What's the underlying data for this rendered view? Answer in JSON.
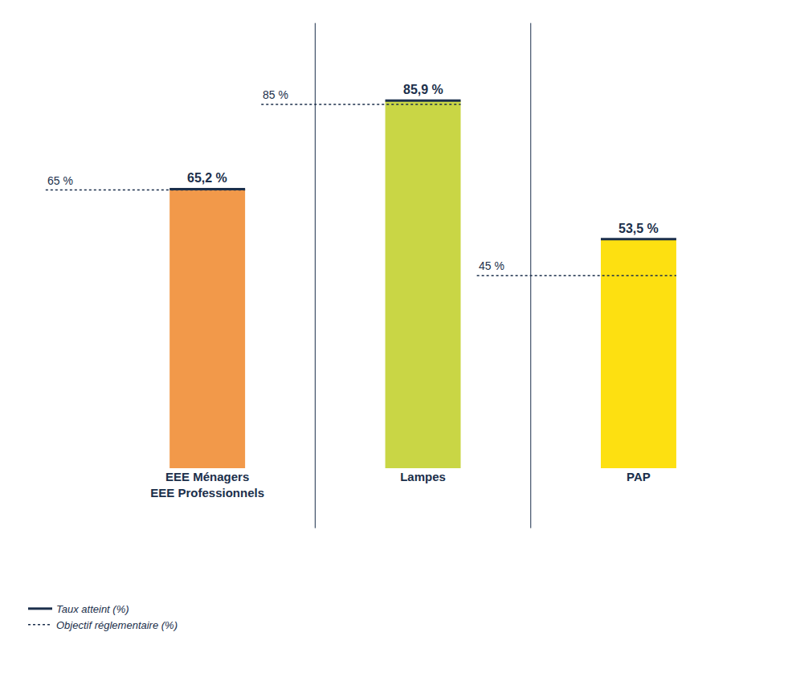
{
  "chart_data": {
    "type": "bar",
    "categories": [
      "EEE Ménagers\nEEE Professionnels",
      "Lampes",
      "PAP"
    ],
    "series": [
      {
        "name": "Taux atteint (%)",
        "type": "bar",
        "color": "#1b2f4b",
        "colors": [
          "#f2994a",
          "#c9d645",
          "#fde011"
        ],
        "values": [
          65.2,
          85.9,
          53.5
        ],
        "value_labels": [
          "65,2 %",
          "85,9 %",
          "53,5 %"
        ],
        "line_style": "solid"
      },
      {
        "name": "Objectif réglementaire (%)",
        "type": "line",
        "color": "#1b2f4b",
        "values": [
          65,
          85,
          45
        ],
        "value_labels": [
          "65 %",
          "85 %",
          "45 %"
        ],
        "line_style": "dotted"
      }
    ],
    "ylim": [
      0,
      100
    ],
    "yticks": [],
    "grid": false,
    "data_labels": true,
    "tick_labels": "x",
    "legend": "bottom left"
  }
}
